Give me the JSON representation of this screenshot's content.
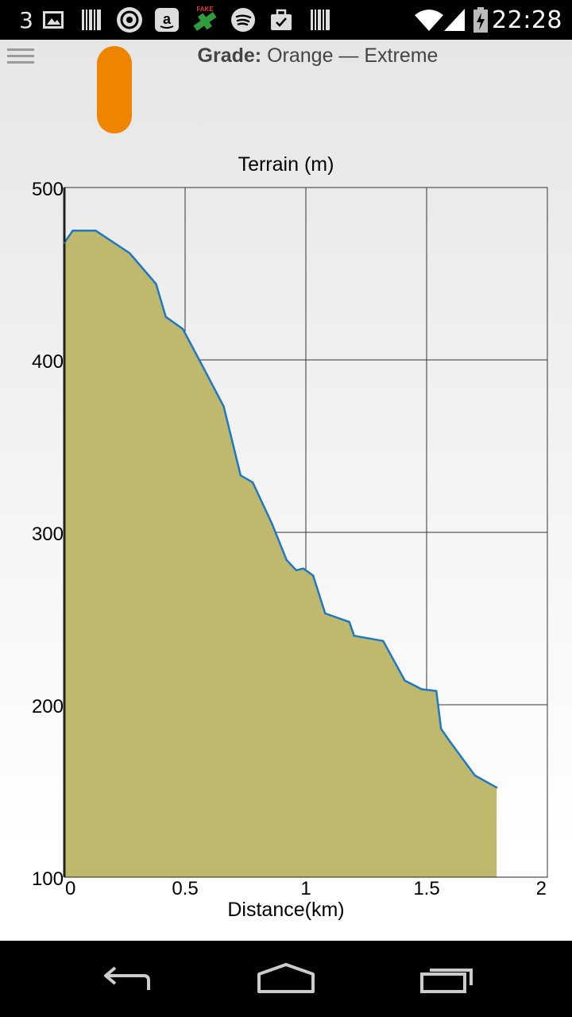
{
  "status_bar": {
    "notification_count": "3",
    "time": "22:28",
    "icons": [
      "image-icon",
      "barcode-icon",
      "pocket-casts-icon",
      "amazon-icon",
      "fake-gps-icon",
      "spotify-icon",
      "briefcase-icon",
      "barcode-icon",
      "wifi-icon",
      "signal-icon",
      "battery-charging-icon"
    ],
    "fake_gps_label": "FAKE"
  },
  "header": {
    "grade_label": "Grade:",
    "grade_value": "Orange — Extreme",
    "grade_color": "#ee8400",
    "menu_icon": "hamburger-menu-icon"
  },
  "chart_data": {
    "type": "area",
    "title": "Terrain (m)",
    "xlabel": "Distance(km)",
    "ylabel": "",
    "xlim": [
      0,
      2
    ],
    "ylim": [
      100,
      500
    ],
    "xticks": [
      "0",
      "0.5",
      "1",
      "1.5",
      "2"
    ],
    "yticks": [
      "100",
      "200",
      "300",
      "400",
      "500"
    ],
    "grid": true,
    "fill_color": "#bfb96d",
    "line_color": "#1f78c4",
    "x": [
      0,
      0.035,
      0.13,
      0.27,
      0.38,
      0.42,
      0.49,
      0.57,
      0.66,
      0.73,
      0.78,
      0.86,
      0.92,
      0.96,
      0.99,
      1.03,
      1.08,
      1.18,
      1.2,
      1.32,
      1.41,
      1.48,
      1.54,
      1.56,
      1.6,
      1.7,
      1.79
    ],
    "y": [
      468,
      475,
      475,
      462,
      444,
      425,
      418,
      397,
      373,
      333,
      329,
      305,
      284,
      278,
      279,
      275,
      253,
      248,
      240,
      237,
      214,
      209,
      208,
      186,
      178,
      159,
      152
    ]
  },
  "nav_bar": {
    "buttons": [
      "back-icon",
      "home-icon",
      "recent-apps-icon"
    ]
  }
}
